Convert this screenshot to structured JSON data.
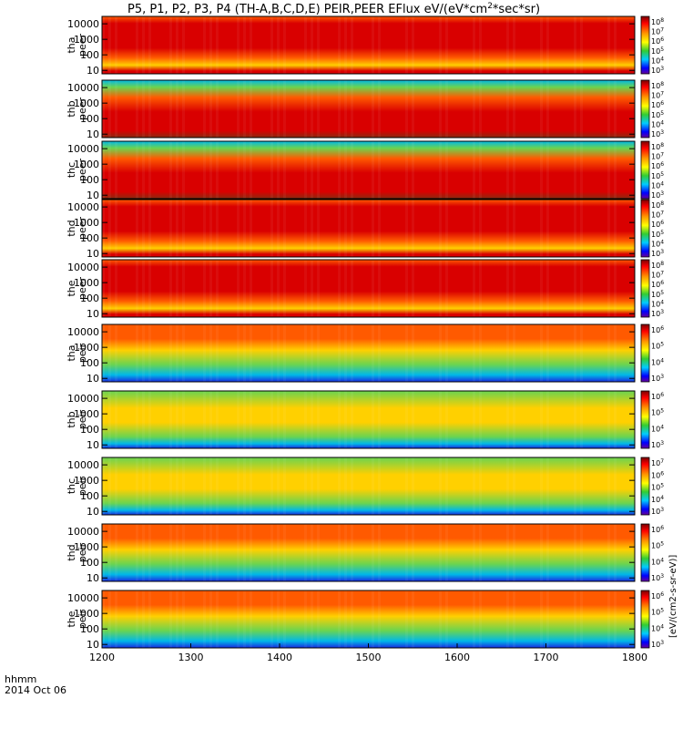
{
  "chart_data": {
    "type": "heatmap",
    "title": "P5, P1, P2, P3, P4 (TH-A,B,C,D,E) PEIR,PEER EFlux eV/(eV*cm",
    "title_sup": "2",
    "title_tail": "*sec*sr)",
    "x_axis": {
      "time_label": "hhmm",
      "date_label": "2014 Oct 06",
      "ticks": [
        1200,
        1300,
        1400,
        1500,
        1600,
        1700,
        1800
      ],
      "range": [
        1200,
        1800
      ]
    },
    "y_ticks": [
      "10000",
      "1000",
      "100",
      "10"
    ],
    "y_range": [
      6,
      30000
    ],
    "y_scale": "log",
    "colorbar_unit": "eV/(cm2-s-sr-eV)",
    "colorbar_unit_vertical": "[eV/(cm2-s-sr-eV)]",
    "panels": [
      {
        "name": "tha peer",
        "label1": "tha",
        "label2": "peer",
        "cb_ticks": [
          "10",
          "10",
          "10",
          "10",
          "10",
          "10"
        ],
        "cb_exps": [
          "8",
          "7",
          "6",
          "5",
          "4",
          "3"
        ]
      },
      {
        "name": "thb peer",
        "label1": "thb",
        "label2": "peer",
        "cb_ticks": [
          "10",
          "10",
          "10",
          "10",
          "10",
          "10"
        ],
        "cb_exps": [
          "8",
          "7",
          "6",
          "5",
          "4",
          "3"
        ]
      },
      {
        "name": "thc peer",
        "label1": "thc",
        "label2": "peer",
        "cb_ticks": [
          "10",
          "10",
          "10",
          "10",
          "10",
          "10"
        ],
        "cb_exps": [
          "8",
          "7",
          "6",
          "5",
          "4",
          "3"
        ]
      },
      {
        "name": "thd peer",
        "label1": "thd",
        "label2": "peer",
        "cb_ticks": [
          "10",
          "10",
          "10",
          "10",
          "10",
          "10"
        ],
        "cb_exps": [
          "8",
          "7",
          "6",
          "5",
          "4",
          "3"
        ]
      },
      {
        "name": "the peer",
        "label1": "the",
        "label2": "peer",
        "cb_ticks": [
          "10",
          "10",
          "10",
          "10",
          "10",
          "10"
        ],
        "cb_exps": [
          "8",
          "7",
          "6",
          "5",
          "4",
          "3"
        ]
      },
      {
        "name": "tha peir",
        "label1": "tha",
        "label2": "peir",
        "cb_ticks": [
          "10",
          "10",
          "10",
          "10"
        ],
        "cb_exps": [
          "6",
          "5",
          "4",
          "3"
        ]
      },
      {
        "name": "thb peir",
        "label1": "thb",
        "label2": "peir",
        "cb_ticks": [
          "10",
          "10",
          "10",
          "10"
        ],
        "cb_exps": [
          "6",
          "5",
          "4",
          "3"
        ]
      },
      {
        "name": "thc peir",
        "label1": "thc",
        "label2": "peir",
        "cb_ticks": [
          "10",
          "10",
          "10",
          "10",
          "10"
        ],
        "cb_exps": [
          "7",
          "6",
          "5",
          "4",
          "3"
        ]
      },
      {
        "name": "thd peir",
        "label1": "thd",
        "label2": "peir",
        "cb_ticks": [
          "10",
          "10",
          "10",
          "10"
        ],
        "cb_exps": [
          "6",
          "5",
          "4",
          "3"
        ]
      },
      {
        "name": "the peir",
        "label1": "the",
        "label2": "peir",
        "cb_ticks": [
          "10",
          "10",
          "10",
          "10"
        ],
        "cb_exps": [
          "6",
          "5",
          "4",
          "3"
        ]
      }
    ],
    "colors": {
      "high": "#d90000",
      "upper": "#ff5a00",
      "mid": "#ffd000",
      "lowmid": "#6ad450",
      "low": "#00b8e8",
      "lowest": "#1a2ae0"
    }
  }
}
